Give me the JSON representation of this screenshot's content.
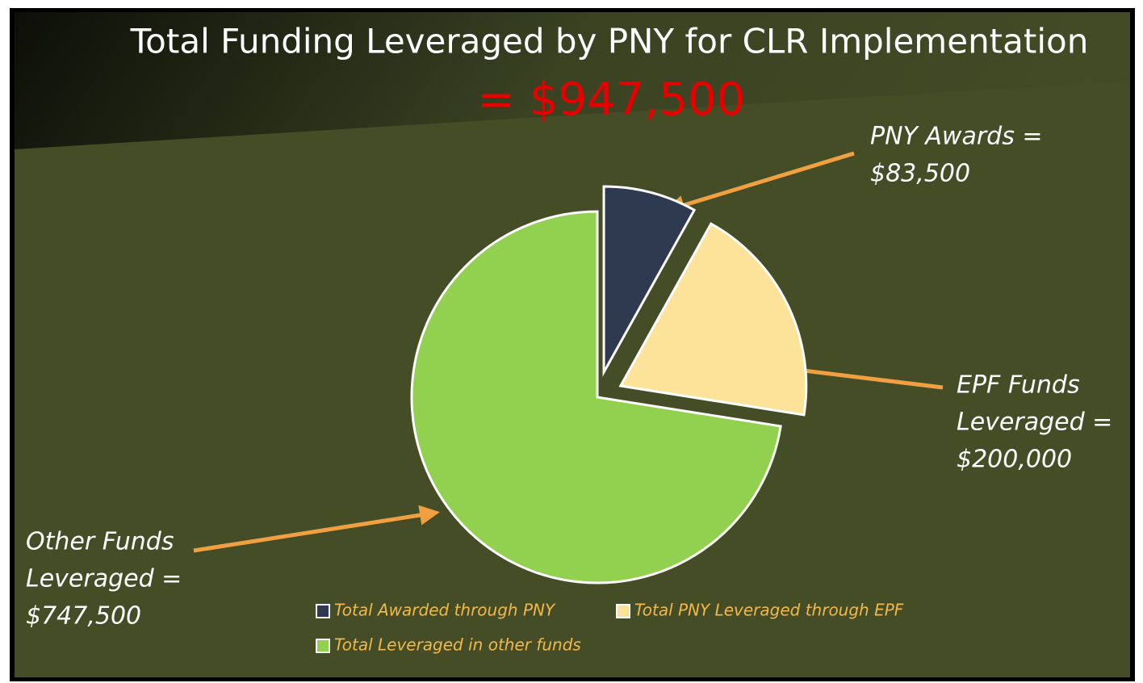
{
  "chart_data": {
    "type": "pie",
    "title": "Total Funding Leveraged by PNY for CLR Implementation",
    "subtitle": "= $947,500",
    "categories": [
      "Total Awarded through PNY",
      "Total PNY Leveraged through EPF",
      "Total Leveraged in other funds"
    ],
    "values": [
      83500,
      200000,
      747500
    ],
    "colors": [
      "#2d3a50",
      "#fde39a",
      "#92d050"
    ],
    "legend": "bottom",
    "annotations": [
      {
        "lines": [
          "PNY Awards =",
          "$83,500"
        ]
      },
      {
        "lines": [
          "EPF Funds",
          "Leveraged =",
          "$200,000"
        ]
      },
      {
        "lines": [
          "Other Funds",
          "Leveraged =",
          "$747,500"
        ]
      }
    ]
  }
}
